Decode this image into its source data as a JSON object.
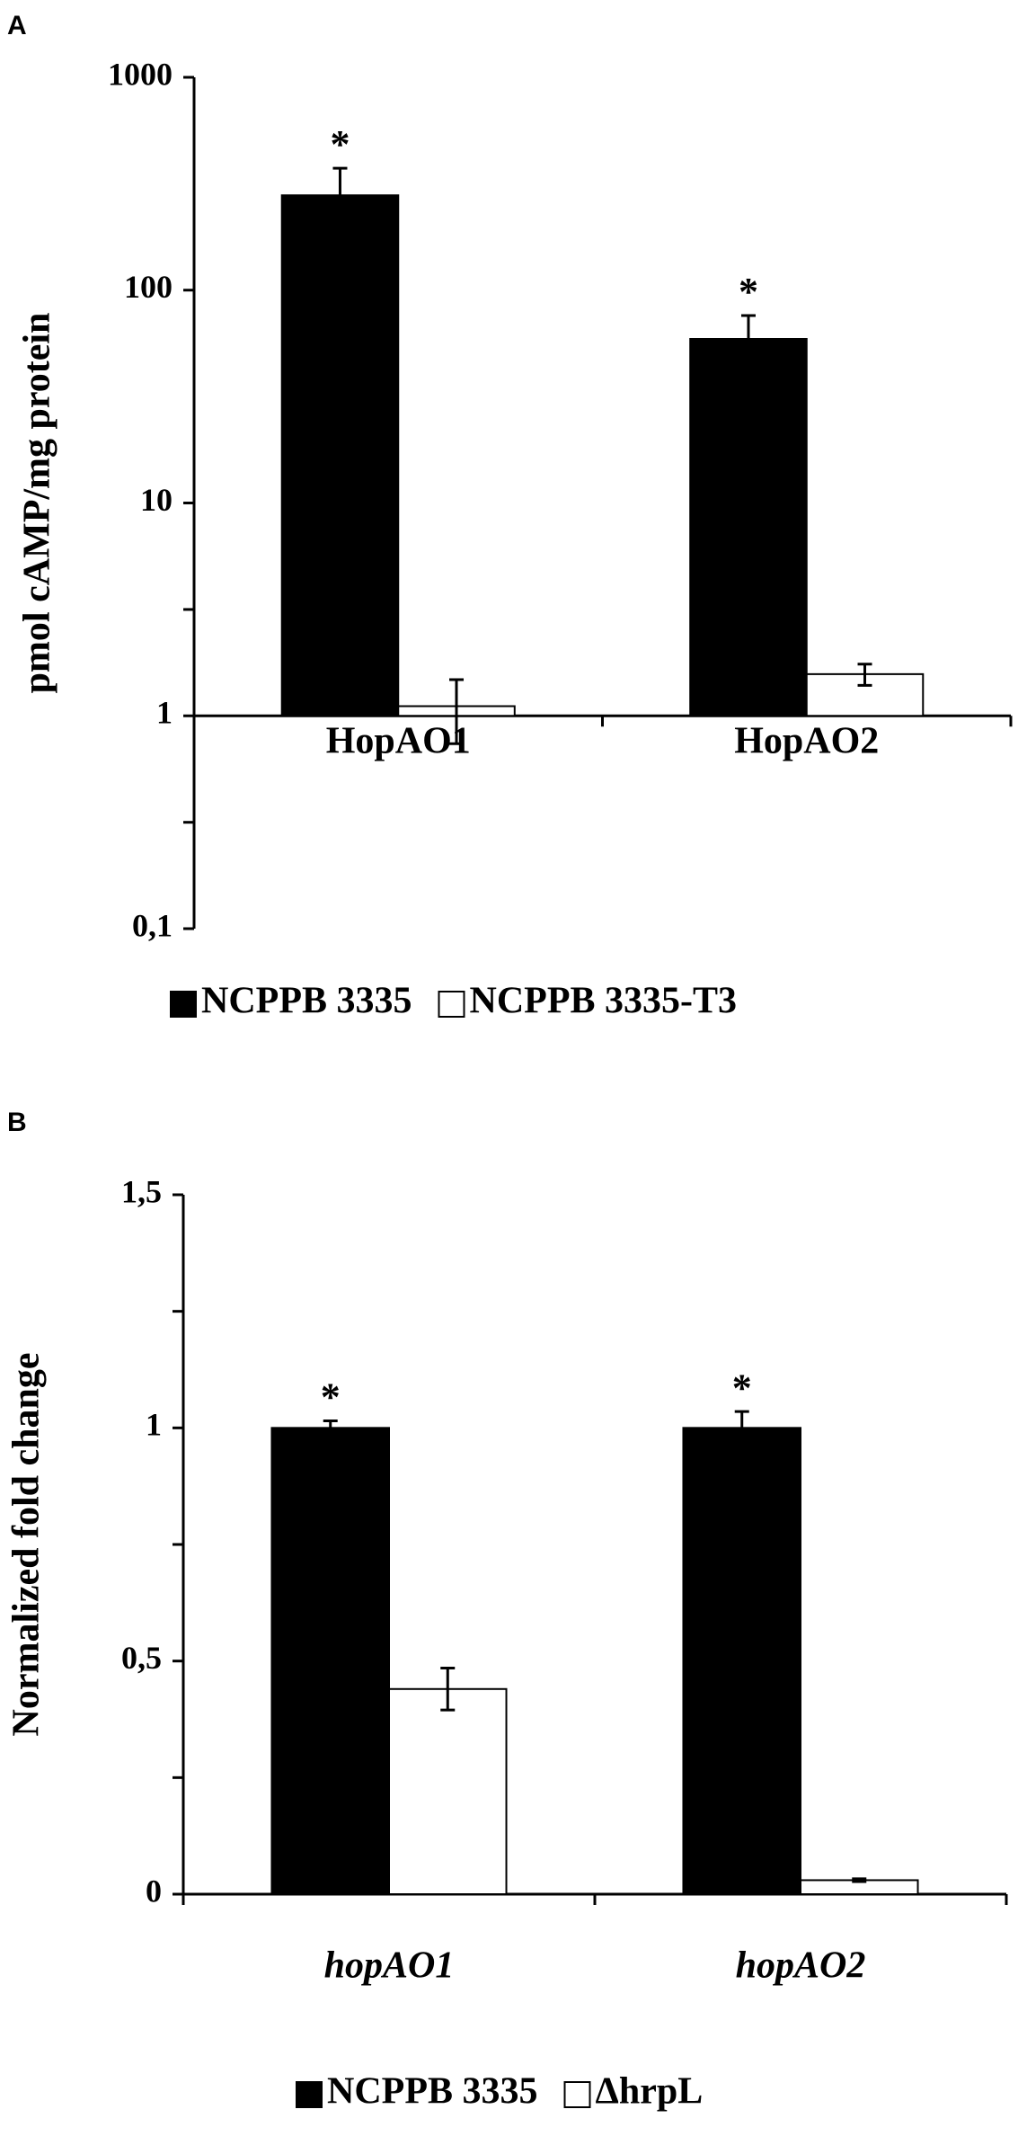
{
  "chart_data": [
    {
      "type": "bar",
      "panel_label": "A",
      "y_label": "pmol cAMP/mg protein",
      "log_scale": true,
      "categories": [
        "HopAO1",
        "HopAO2"
      ],
      "series": [
        {
          "name": "NCPPB 3335",
          "color": "#000000",
          "values": [
            279,
            59
          ],
          "errors": [
            95,
            17
          ]
        },
        {
          "name": "NCPPB 3335-T3",
          "color": "#ffffff",
          "values": [
            1.11,
            1.57
          ],
          "errors": [
            0.37,
            0.18
          ]
        }
      ],
      "annotations": [
        {
          "text": "*",
          "series": 0,
          "category": 0
        },
        {
          "text": "*",
          "series": 0,
          "category": 1
        }
      ],
      "ylim": [
        0.1,
        1000
      ],
      "yticks": [
        {
          "value": 0.1,
          "label": "0,1"
        },
        1,
        10,
        100,
        1000
      ],
      "yminor": [
        0.316,
        3.16
      ],
      "x_axis_at": 1
    },
    {
      "type": "bar",
      "panel_label": "B",
      "y_label": "Normalized fold change",
      "log_scale": false,
      "italic_categories": true,
      "categories": [
        "hopAO1",
        "hopAO2"
      ],
      "series": [
        {
          "name": "NCPPB 3335",
          "color": "#000000",
          "values": [
            1,
            1
          ],
          "errors": [
            0.015,
            0.035
          ]
        },
        {
          "name": "ΔhrpL",
          "color": "#ffffff",
          "values": [
            0.44,
            0.03
          ],
          "errors": [
            0.045,
            0.003
          ]
        }
      ],
      "annotations": [
        {
          "text": "*",
          "series": 0,
          "category": 0
        },
        {
          "text": "*",
          "series": 0,
          "category": 1
        }
      ],
      "ylim": [
        0,
        1.5
      ],
      "yticks": [
        0,
        {
          "value": 0.5,
          "label": "0,5"
        },
        1,
        {
          "value": 1.5,
          "label": "1,5"
        }
      ],
      "yminor": [
        0.25,
        0.75,
        1.25
      ],
      "x_axis_at": 0
    }
  ]
}
